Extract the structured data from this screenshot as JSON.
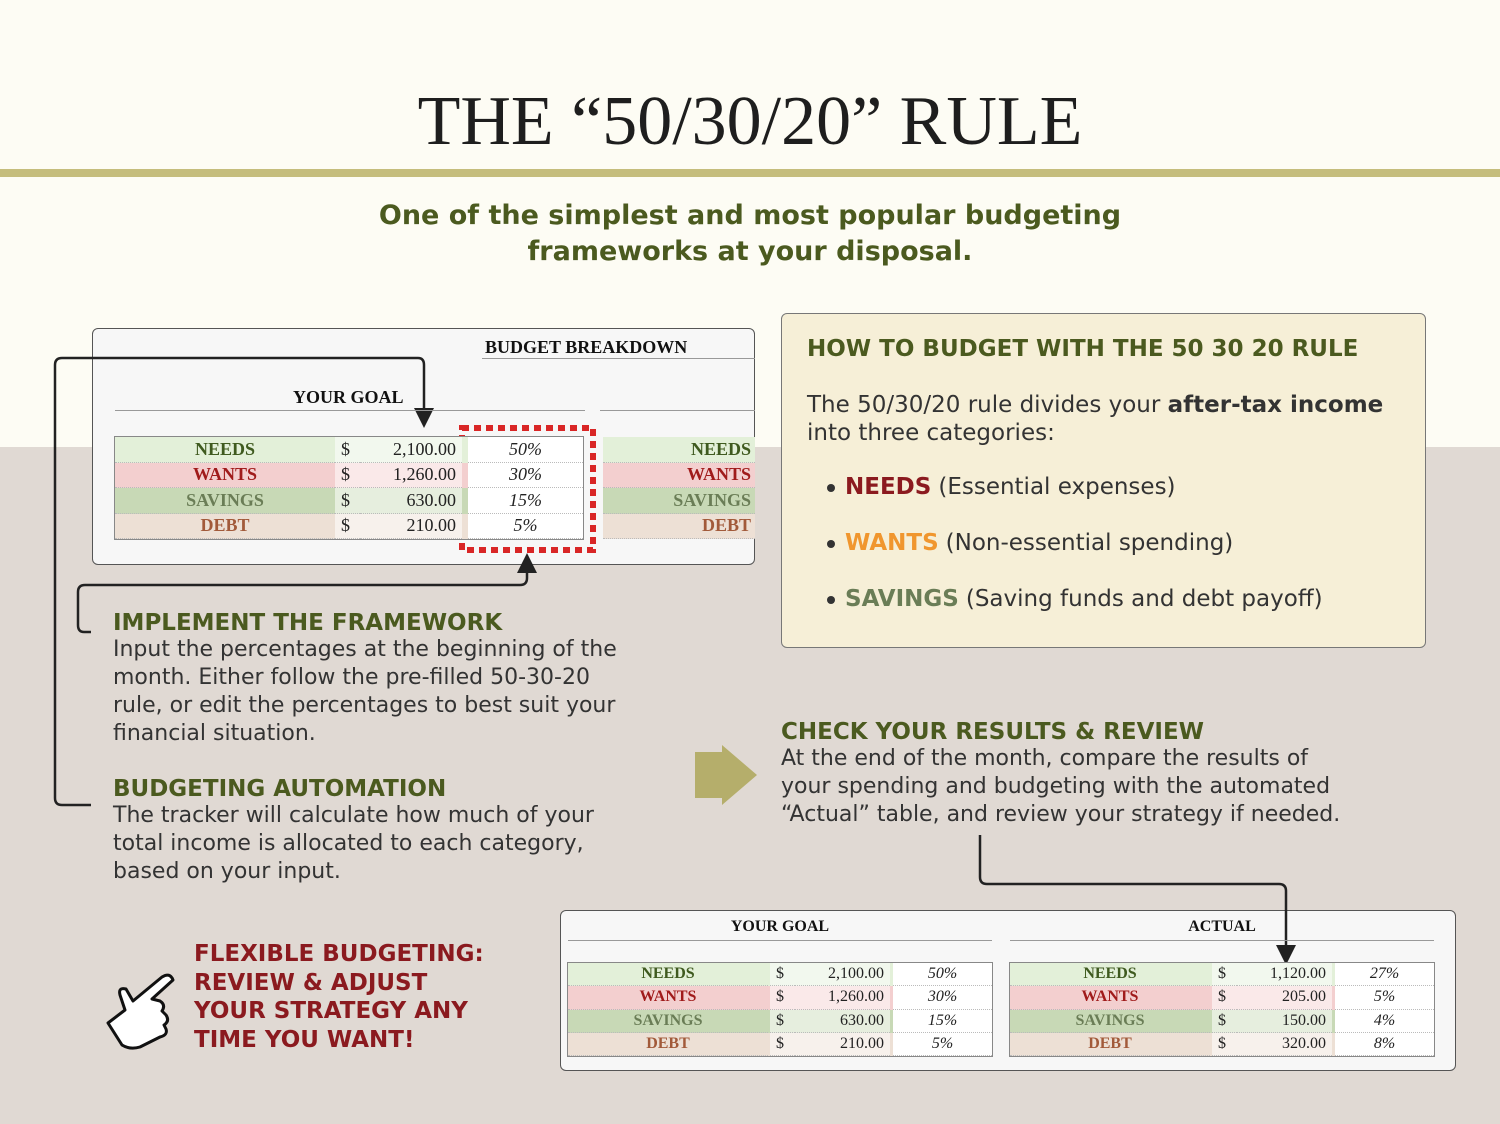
{
  "header": {
    "title": "THE “50/30/20” RULE",
    "subtitle_lines": [
      "One of the simplest and most popular budgeting",
      "frameworks at your disposal."
    ]
  },
  "top_table": {
    "title": "BUDGET BREAKDOWN",
    "goal_label": "YOUR GOAL",
    "rows": [
      [
        "NEEDS",
        "$",
        "2,100.00",
        "50%"
      ],
      [
        "WANTS",
        "$",
        "1,260.00",
        "30%"
      ],
      [
        "SAVINGS",
        "$",
        "630.00",
        "15%"
      ],
      [
        "DEBT",
        "$",
        "210.00",
        "5%"
      ]
    ],
    "side_rows": [
      "NEEDS",
      "WANTS",
      "SAVINGS",
      "DEBT"
    ]
  },
  "how_to": {
    "title": "HOW TO BUDGET WITH THE 50 30 20 RULE",
    "intro_start": "The 50/30/20 rule divides your ",
    "intro_bold": "after-tax income",
    "intro_end": "into three categories:",
    "items": [
      {
        "name": "NEEDS",
        "desc": "(Essential expenses)"
      },
      {
        "name": "WANTS",
        "desc": "(Non-essential spending)"
      },
      {
        "name": "SAVINGS",
        "desc": "(Saving funds and debt payoff)"
      }
    ]
  },
  "steps": [
    {
      "title": "IMPLEMENT THE FRAMEWORK",
      "lines": [
        "Input the percentages at the beginning of the",
        "month. Either follow the pre-filled 50-30-20",
        "rule, or edit the percentages to best suit your",
        "financial situation."
      ]
    },
    {
      "title": "BUDGETING AUTOMATION",
      "lines": [
        "The tracker will calculate how much of your",
        "total income is allocated to each category,",
        "based on your input."
      ]
    }
  ],
  "check": {
    "title": "CHECK YOUR RESULTS & REVIEW",
    "lines": [
      "At the end of the month, compare the results of",
      "your spending and budgeting with the automated",
      "“Actual” table, and review your strategy if needed."
    ]
  },
  "flexible": {
    "lines": [
      "FLEXIBLE BUDGETING:",
      "REVIEW & ADJUST",
      "YOUR STRATEGY ANY",
      "TIME YOU WANT!"
    ]
  },
  "bottom_table": {
    "goal_label": "YOUR GOAL",
    "actual_label": "ACTUAL",
    "goal_rows": [
      [
        "NEEDS",
        "$",
        "2,100.00",
        "50%"
      ],
      [
        "WANTS",
        "$",
        "1,260.00",
        "30%"
      ],
      [
        "SAVINGS",
        "$",
        "630.00",
        "15%"
      ],
      [
        "DEBT",
        "$",
        "210.00",
        "5%"
      ]
    ],
    "actual_rows": [
      [
        "NEEDS",
        "$",
        "1,120.00",
        "27%"
      ],
      [
        "WANTS",
        "$",
        "205.00",
        "5%"
      ],
      [
        "SAVINGS",
        "$",
        "150.00",
        "4%"
      ],
      [
        "DEBT",
        "$",
        "320.00",
        "8%"
      ]
    ]
  }
}
